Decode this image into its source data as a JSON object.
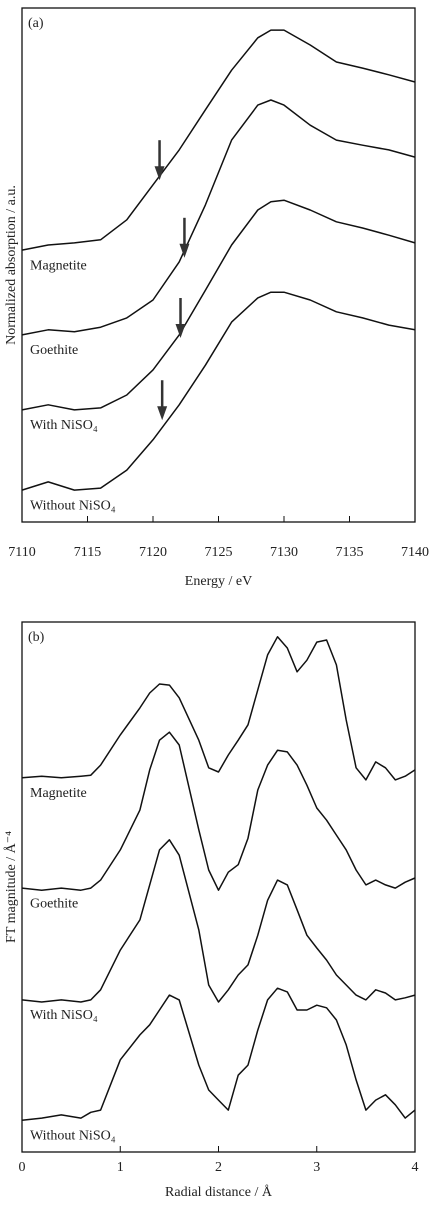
{
  "chart_data": [
    {
      "type": "line",
      "annotation": "(a)",
      "x_label": "Energy / eV",
      "y_label": "Normalized absorption / a.u.",
      "xlim": [
        7110,
        7140
      ],
      "xticks": [
        7110,
        7115,
        7120,
        7125,
        7130,
        7135,
        7140
      ],
      "ylim": [
        0,
        100
      ],
      "x": [
        7110,
        7112,
        7114,
        7116,
        7118,
        7120,
        7122,
        7124,
        7126,
        7128,
        7129,
        7130,
        7132,
        7134,
        7136,
        7138,
        7140
      ],
      "series": [
        {
          "name": "Magnetite",
          "color": "#111111",
          "values": [
            52.9,
            53.9,
            54.3,
            54.9,
            58.8,
            65.6,
            72.4,
            80.2,
            87.9,
            94.2,
            95.7,
            95.7,
            92.8,
            89.5,
            88.3,
            87.0,
            85.6
          ]
        },
        {
          "name": "Goethite",
          "color": "#111111",
          "values": [
            36.4,
            37.4,
            37.0,
            37.9,
            39.7,
            43.2,
            50.6,
            61.7,
            74.3,
            81.1,
            82.1,
            81.1,
            77.2,
            74.3,
            73.3,
            72.4,
            71.0
          ]
        },
        {
          "name": "With NiSO₄",
          "color": "#111111",
          "values": [
            21.8,
            22.8,
            21.8,
            22.2,
            24.7,
            29.6,
            36.4,
            45.1,
            53.9,
            60.7,
            62.3,
            62.6,
            60.7,
            58.4,
            57.2,
            55.8,
            54.3
          ]
        },
        {
          "name": "Without NiSO₄",
          "color": "#111111",
          "values": [
            6.2,
            7.8,
            6.2,
            6.6,
            10.1,
            16.0,
            22.8,
            30.5,
            38.9,
            43.6,
            44.7,
            44.7,
            43.2,
            40.9,
            39.7,
            38.3,
            37.4
          ]
        }
      ],
      "arrows": [
        {
          "x": 7120.5,
          "y": 66.5
        },
        {
          "x": 7122.4,
          "y": 51.4
        },
        {
          "x": 7122.1,
          "y": 35.8
        },
        {
          "x": 7120.7,
          "y": 19.8
        }
      ],
      "arrow_color": "#333333"
    },
    {
      "type": "line",
      "annotation": "(b)",
      "x_label": "Radial distance / Å",
      "y_label": "FT magnitude / Å⁻⁴",
      "xlim": [
        0,
        4
      ],
      "xticks": [
        0,
        1,
        2,
        3,
        4
      ],
      "ylim": [
        0,
        100
      ],
      "x": [
        0,
        0.2,
        0.4,
        0.6,
        0.7,
        0.8,
        1.0,
        1.2,
        1.3,
        1.4,
        1.5,
        1.6,
        1.8,
        1.9,
        2.0,
        2.1,
        2.2,
        2.3,
        2.4,
        2.5,
        2.6,
        2.7,
        2.8,
        2.9,
        3.0,
        3.1,
        3.2,
        3.3,
        3.4,
        3.5,
        3.6,
        3.7,
        3.8,
        3.9,
        4.0
      ],
      "series": [
        {
          "name": "Magnetite",
          "color": "#111111",
          "values": [
            70.6,
            70.9,
            70.6,
            70.9,
            71.1,
            73.0,
            78.7,
            83.8,
            86.6,
            88.3,
            88.1,
            85.7,
            77.7,
            72.5,
            71.7,
            74.9,
            77.7,
            80.6,
            87.2,
            93.8,
            97.2,
            95.1,
            90.6,
            92.8,
            96.2,
            96.6,
            91.9,
            81.5,
            72.5,
            70.2,
            73.6,
            72.5,
            70.2,
            70.9,
            72.1
          ]
        },
        {
          "name": "Goethite",
          "color": "#111111",
          "values": [
            49.8,
            49.4,
            49.8,
            49.4,
            49.8,
            51.3,
            57.0,
            64.5,
            72.1,
            77.7,
            79.2,
            76.8,
            60.8,
            53.2,
            49.4,
            52.8,
            54.2,
            59.2,
            68.3,
            73.0,
            75.8,
            75.5,
            73.0,
            69.2,
            64.9,
            62.6,
            59.8,
            57.0,
            53.2,
            50.4,
            51.3,
            50.4,
            49.8,
            50.9,
            51.7
          ]
        },
        {
          "name": "With NiSO₄",
          "color": "#111111",
          "values": [
            28.7,
            28.3,
            28.7,
            28.3,
            28.7,
            30.6,
            38.1,
            43.8,
            50.4,
            57.0,
            58.9,
            56.0,
            41.9,
            31.5,
            28.3,
            30.6,
            33.4,
            35.3,
            40.9,
            47.5,
            51.3,
            50.4,
            45.7,
            40.9,
            38.5,
            36.2,
            33.4,
            31.5,
            29.6,
            28.7,
            30.6,
            30.0,
            28.7,
            29.1,
            29.6
          ]
        },
        {
          "name": "Without NiSO₄",
          "color": "#111111",
          "values": [
            6.0,
            6.4,
            7.0,
            6.4,
            7.5,
            7.9,
            17.4,
            22.1,
            24.0,
            26.8,
            29.6,
            28.7,
            16.4,
            11.7,
            9.8,
            7.9,
            14.5,
            16.4,
            23.0,
            28.7,
            30.9,
            30.2,
            26.8,
            26.8,
            27.7,
            27.2,
            24.9,
            20.2,
            13.6,
            7.9,
            9.8,
            10.8,
            8.9,
            6.4,
            7.9
          ]
        }
      ]
    }
  ]
}
